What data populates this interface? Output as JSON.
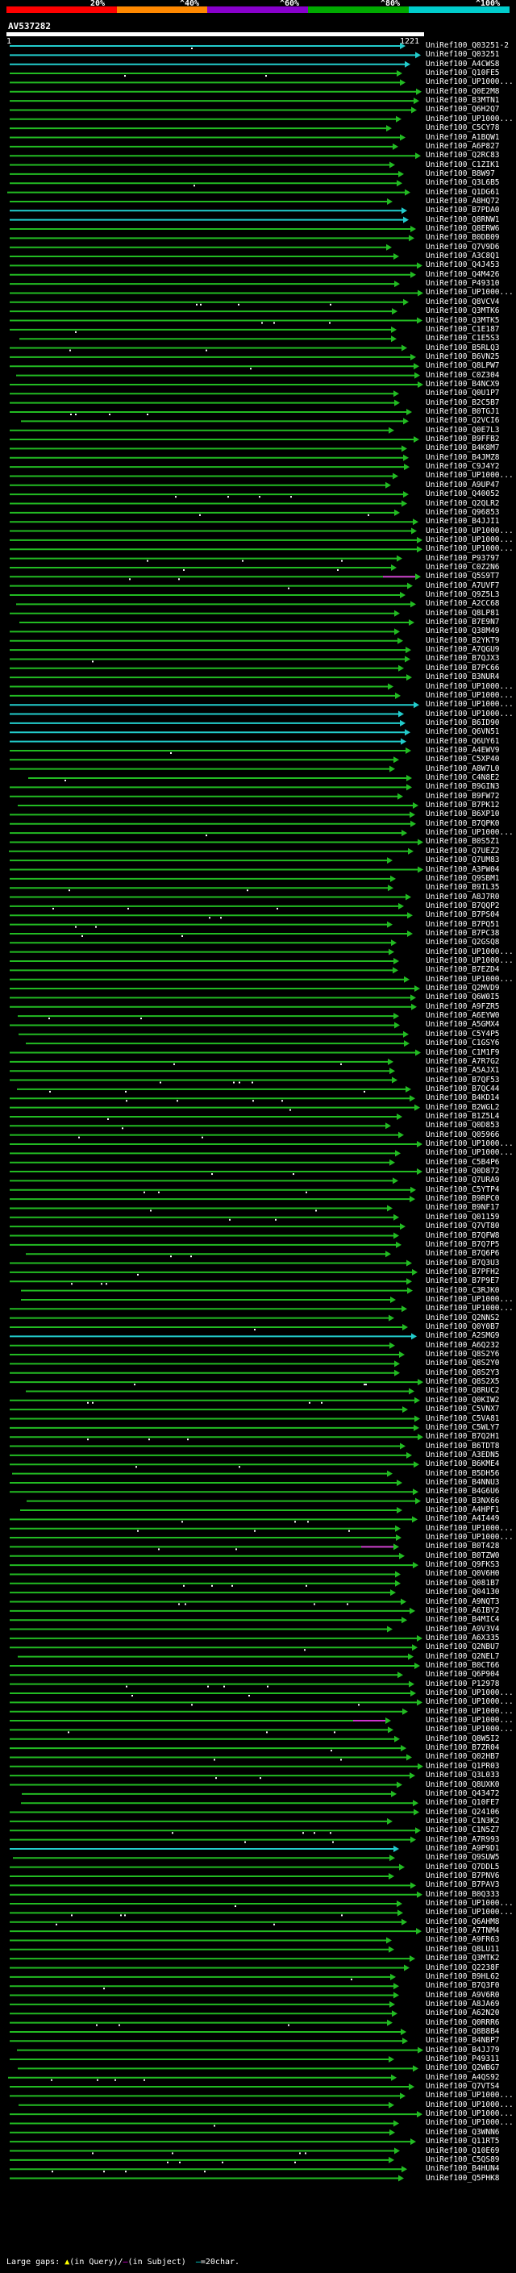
{
  "colorbar": {
    "segments": [
      {
        "color": "#ff0000",
        "share": 0.22
      },
      {
        "color": "#ff8800",
        "share": 0.18
      },
      {
        "color": "#8800cc",
        "share": 0.2
      },
      {
        "color": "#00aa00",
        "share": 0.2
      },
      {
        "color": "#00cccc",
        "share": 0.2
      }
    ],
    "labels": [
      "20%",
      "^40%",
      "^60%",
      "^80%",
      "^100%"
    ]
  },
  "query": {
    "name": "AV537282",
    "start": "1",
    "end": "1221"
  },
  "colors": {
    "green": "#22bb22",
    "cyan": "#22cccc",
    "magenta": "#cc33cc",
    "gap_fill": "#1a2a1a"
  },
  "hits": [
    "UniRef100_Q03251-2",
    "UniRef100_Q03251",
    "UniRef100_A4CWS8",
    "UniRef100_Q10FE5",
    "UniRef100_UP1000...",
    "UniRef100_Q0E2M8",
    "UniRef100_B3MTN1",
    "UniRef100_Q6H2Q7",
    "UniRef100_UP1000...",
    "UniRef100_C5CY78",
    "UniRef100_A1BQW1",
    "UniRef100_A6P827",
    "UniRef100_Q2RC83",
    "UniRef100_C1ZIK1",
    "UniRef100_B8W97",
    "UniRef100_Q3L6B5",
    "UniRef100_Q1DG61",
    "UniRef100_A8HQ72",
    "UniRef100_B7PDA0",
    "UniRef100_Q8RNW1",
    "UniRef100_Q8ERW6",
    "UniRef100_B0DB09",
    "UniRef100_Q7V9D6",
    "UniRef100_A3C8Q1",
    "UniRef100_Q4J453",
    "UniRef100_Q4M426",
    "UniRef100_P49310",
    "UniRef100_UP1000...",
    "UniRef100_Q8VCV4",
    "UniRef100_Q3MTK6",
    "UniRef100_Q3MTK5",
    "UniRef100_C1E187",
    "UniRef100_C1E5S3",
    "UniRef100_B5RLQ3",
    "UniRef100_B6VN25",
    "UniRef100_Q8LPW7",
    "UniRef100_C0Z304",
    "UniRef100_B4NCX9",
    "UniRef100_Q0U1P7",
    "UniRef100_B2C5B7",
    "UniRef100_B0TGJ1",
    "UniRef100_Q2VCI6",
    "UniRef100_Q0E7L3",
    "UniRef100_B9FFB2",
    "UniRef100_B4K8M7",
    "UniRef100_B4JMZ8",
    "UniRef100_C9J4Y2",
    "UniRef100_UP1000...",
    "UniRef100_A9UP47",
    "UniRef100_Q40052",
    "UniRef100_Q2QLR2",
    "UniRef100_Q96853",
    "UniRef100_B4JJI1",
    "UniRef100_UP1000...",
    "UniRef100_UP1000...",
    "UniRef100_UP1000...",
    "UniRef100_P93797",
    "UniRef100_C0Z2N6",
    "UniRef100_Q5S9T7",
    "UniRef100_A7UVF7",
    "UniRef100_Q9Z5L3",
    "UniRef100_A2CC68",
    "UniRef100_Q8LP81",
    "UniRef100_B7E9N7",
    "UniRef100_Q38M49",
    "UniRef100_B2YKT9",
    "UniRef100_A7QGU9",
    "UniRef100_B7QJX3",
    "UniRef100_B7PC66",
    "UniRef100_B3NUR4",
    "UniRef100_UP1000...",
    "UniRef100_UP1000...",
    "UniRef100_UP1000...",
    "UniRef100_UP1000...",
    "UniRef100_B6ID90",
    "UniRef100_Q6VN51",
    "UniRef100_Q6UY61",
    "UniRef100_A4EWV9",
    "UniRef100_C5XP40",
    "UniRef100_A8W7L0",
    "UniRef100_C4N8E2",
    "UniRef100_B9GIN3",
    "UniRef100_B9FW72",
    "UniRef100_B7PK12",
    "UniRef100_B6XP10",
    "UniRef100_B7QPK0",
    "UniRef100_UP1000...",
    "UniRef100_B0S5Z1",
    "UniRef100_Q7UEZ2",
    "UniRef100_Q7UM83",
    "UniRef100_A3PW04",
    "UniRef100_Q9SBM1",
    "UniRef100_B9IL35",
    "UniRef100_A8J7R0",
    "UniRef100_B7QQP2",
    "UniRef100_B7PS04",
    "UniRef100_B7PQ51",
    "UniRef100_B7PC38",
    "UniRef100_Q2GSQ8",
    "UniRef100_UP1000...",
    "UniRef100_UP1000...",
    "UniRef100_B7EZD4",
    "UniRef100_UP1000...",
    "UniRef100_Q2MVD9",
    "UniRef100_Q6W0I5",
    "UniRef100_A9FZR5",
    "UniRef100_A6EYW0",
    "UniRef100_A5GMX4",
    "UniRef100_C5Y4P5",
    "UniRef100_C1GSY6",
    "UniRef100_C1M1F9",
    "UniRef100_A7R7G2",
    "UniRef100_A5AJX1",
    "UniRef100_B7QF53",
    "UniRef100_B7QC44",
    "UniRef100_B4KD14",
    "UniRef100_B2WGL2",
    "UniRef100_B1Z5L4",
    "UniRef100_Q0D853",
    "UniRef100_Q05966",
    "UniRef100_UP1000...",
    "UniRef100_UP1000...",
    "UniRef100_C5B4P6",
    "UniRef100_Q0D872",
    "UniRef100_Q7URA9",
    "UniRef100_C5YTP4",
    "UniRef100_B9RPC0",
    "UniRef100_B9NF17",
    "UniRef100_Q01159",
    "UniRef100_Q7VT80",
    "UniRef100_B7QFW8",
    "UniRef100_B7Q7P5",
    "UniRef100_B7Q6P6",
    "UniRef100_B7Q3U3",
    "UniRef100_B7PFH2",
    "UniRef100_B7P9E7",
    "UniRef100_C3RJK0",
    "UniRef100_UP1000...",
    "UniRef100_UP1000...",
    "UniRef100_Q2NNS2",
    "UniRef100_Q0Y0B7",
    "UniRef100_A2SMG9",
    "UniRef100_A6Q232",
    "UniRef100_Q8S2Y6",
    "UniRef100_Q8S2Y0",
    "UniRef100_Q8S2Y3",
    "UniRef100_Q8S2X5",
    "UniRef100_Q8RUC2",
    "UniRef100_Q0KIW2",
    "UniRef100_C5VNX7",
    "UniRef100_C5VA81",
    "UniRef100_C5WLY7",
    "UniRef100_B7Q2H1",
    "UniRef100_B6TDT8",
    "UniRef100_A3EDN5",
    "UniRef100_B6KME4",
    "UniRef100_B5DH56",
    "UniRef100_B4NNU3",
    "UniRef100_B4G6U6",
    "UniRef100_B3NX66",
    "UniRef100_A4HPF1",
    "UniRef100_A4I449",
    "UniRef100_UP1000...",
    "UniRef100_UP1000...",
    "UniRef100_B0T428",
    "UniRef100_B0TZW0",
    "UniRef100_Q9FKS3",
    "UniRef100_Q0V6H0",
    "UniRef100_Q081B7",
    "UniRef100_Q04130",
    "UniRef100_A9NQT3",
    "UniRef100_A6IBY2",
    "UniRef100_B4MIC4",
    "UniRef100_A9V3V4",
    "UniRef100_A6X335",
    "UniRef100_Q2NBU7",
    "UniRef100_Q2NEL7",
    "UniRef100_B0CT66",
    "UniRef100_Q6P904",
    "UniRef100_P12978",
    "UniRef100_UP1000...",
    "UniRef100_UP1000...",
    "UniRef100_UP1000...",
    "UniRef100_UP1000...",
    "UniRef100_UP1000...",
    "UniRef100_Q8W5I2",
    "UniRef100_B7ZR04",
    "UniRef100_Q02HB7",
    "UniRef100_Q1PR03",
    "UniRef100_Q3L033",
    "UniRef100_Q8UXK0",
    "UniRef100_Q43472",
    "UniRef100_Q10FE7",
    "UniRef100_Q24106",
    "UniRef100_C1N3K2",
    "UniRef100_C1N5Z7",
    "UniRef100_A7R993",
    "UniRef100_A9P9D1",
    "UniRef100_Q9SUW5",
    "UniRef100_Q7DDL5",
    "UniRef100_B7PNV6",
    "UniRef100_B7PAV3",
    "UniRef100_B0Q333",
    "UniRef100_UP1000...",
    "UniRef100_UP1000...",
    "UniRef100_Q6AHM8",
    "UniRef100_A7TNM4",
    "UniRef100_A9FR63",
    "UniRef100_Q8LU11",
    "UniRef100_Q3MTK2",
    "UniRef100_Q2238F",
    "UniRef100_B9HL62",
    "UniRef100_B7Q3F0",
    "UniRef100_A9V6R0",
    "UniRef100_A8JA69",
    "UniRef100_A62N20",
    "UniRef100_Q0RRR6",
    "UniRef100_Q8B8B4",
    "UniRef100_B4NBP7",
    "UniRef100_B4JJ79",
    "UniRef100_P49311",
    "UniRef100_Q2WBG7",
    "UniRef100_A4QS92",
    "UniRef100_Q7VTS4",
    "UniRef100_UP1000...",
    "UniRef100_UP1000...",
    "UniRef100_UP1000...",
    "UniRef100_UP1000...",
    "UniRef100_Q3WNN6",
    "UniRef100_Q11RT5",
    "UniRef100_Q10E69",
    "UniRef100_C5QS89",
    "UniRef100_B4HUN4",
    "UniRef100_Q5PHK8"
  ],
  "legend": {
    "prefix": "Large gaps: ",
    "mark_query": "▲",
    "query_text": "(in Query)/",
    "mark_subject": "—",
    "subject_text": "(in Subject)",
    "mark_scale": "—",
    "scale_text": "=20char."
  }
}
